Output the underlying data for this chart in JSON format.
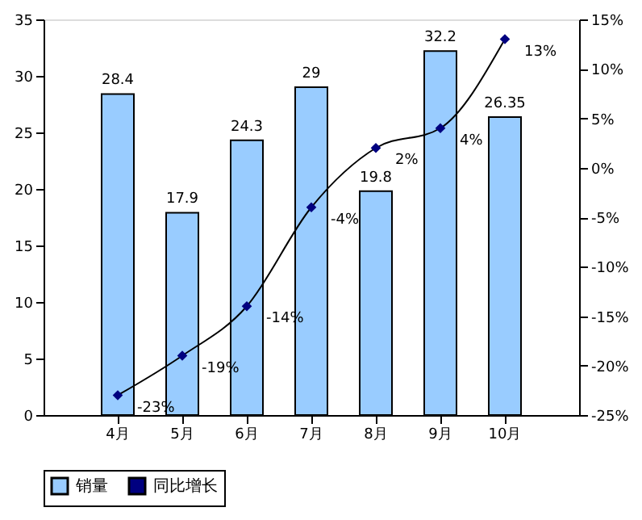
{
  "chart_data": {
    "type": "bar",
    "categories": [
      "4月",
      "5月",
      "6月",
      "7月",
      "8月",
      "9月",
      "10月"
    ],
    "series": [
      {
        "name": "销量",
        "color": "#99ccff",
        "values": [
          28.4,
          17.9,
          24.3,
          29,
          19.8,
          32.2,
          26.35
        ]
      },
      {
        "name": "同比增长",
        "type": "line",
        "axis": "y2",
        "color": "#000080",
        "values": [
          -23,
          -19,
          -14,
          -4,
          2,
          4,
          13
        ],
        "value_labels": [
          "-23%",
          "-19%",
          "-14%",
          "-4%",
          "2%",
          "4%",
          "13%"
        ]
      }
    ],
    "ylim": [
      0,
      35
    ],
    "yticks": [
      0,
      5,
      10,
      15,
      20,
      25,
      30,
      35
    ],
    "y2lim": [
      -25,
      15
    ],
    "y2ticks": [
      {
        "value": -25,
        "label": "-25%"
      },
      {
        "value": -20,
        "label": "-20%"
      },
      {
        "value": -15,
        "label": "-15%"
      },
      {
        "value": -10,
        "label": "-10%"
      },
      {
        "value": -5,
        "label": "-5%"
      },
      {
        "value": 0,
        "label": "0%"
      },
      {
        "value": 5,
        "label": "5%"
      },
      {
        "value": 10,
        "label": "10%"
      },
      {
        "value": 15,
        "label": "15%"
      }
    ],
    "data_labels": true,
    "legend": "bottom",
    "marker": "diamond",
    "grid": false
  }
}
